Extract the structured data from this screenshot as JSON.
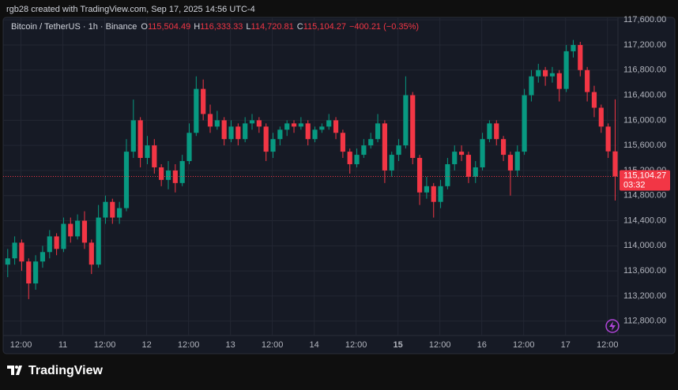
{
  "header": "rgb28 created with TradingView.com, Sep 17, 2025 14:56 UTC-4",
  "brand": "TradingView",
  "chart_data": {
    "type": "candlestick",
    "title": "Bitcoin / TetherUS · 1h · Binance",
    "ohlc": [
      {
        "key": "O",
        "value": "115,504.49"
      },
      {
        "key": "H",
        "value": "116,333.33"
      },
      {
        "key": "L",
        "value": "114,720.81"
      },
      {
        "key": "C",
        "value": "115,104.27"
      }
    ],
    "change": "−400.21 (−0.35%)",
    "last_price_label": "115,104.27",
    "countdown": "03:32",
    "up_color": "#089981",
    "down_color": "#f23645",
    "candles": [
      [
        113700,
        113950,
        113500,
        113800
      ],
      [
        113800,
        114150,
        113700,
        114050
      ],
      [
        114050,
        114100,
        113600,
        113750
      ],
      [
        113750,
        113800,
        113150,
        113400
      ],
      [
        113400,
        113850,
        113300,
        113750
      ],
      [
        113750,
        114000,
        113650,
        113900
      ],
      [
        113900,
        114250,
        113800,
        114150
      ],
      [
        114150,
        114200,
        113850,
        113950
      ],
      [
        113950,
        114450,
        113900,
        114350
      ],
      [
        114350,
        114450,
        114050,
        114150
      ],
      [
        114150,
        114500,
        114100,
        114400
      ],
      [
        114400,
        114550,
        113950,
        114050
      ],
      [
        114050,
        114100,
        113550,
        113700
      ],
      [
        113700,
        114650,
        113650,
        114450
      ],
      [
        114450,
        114800,
        114350,
        114700
      ],
      [
        114700,
        114750,
        114350,
        114450
      ],
      [
        114450,
        114700,
        114350,
        114600
      ],
      [
        114600,
        115700,
        114550,
        115500
      ],
      [
        115500,
        116330,
        115400,
        116000
      ],
      [
        116000,
        116050,
        115250,
        115400
      ],
      [
        115400,
        115750,
        115300,
        115600
      ],
      [
        115600,
        115700,
        115150,
        115250
      ],
      [
        115250,
        115300,
        114950,
        115050
      ],
      [
        115050,
        115350,
        114900,
        115200
      ],
      [
        115200,
        115300,
        114850,
        115000
      ],
      [
        115000,
        115450,
        114950,
        115350
      ],
      [
        115350,
        115950,
        115300,
        115800
      ],
      [
        115800,
        116700,
        115750,
        116500
      ],
      [
        116500,
        116650,
        116000,
        116100
      ],
      [
        116100,
        116250,
        115800,
        115900
      ],
      [
        115900,
        116150,
        115850,
        116000
      ],
      [
        116000,
        116050,
        115600,
        115700
      ],
      [
        115700,
        116000,
        115650,
        115900
      ],
      [
        115900,
        115950,
        115600,
        115700
      ],
      [
        115700,
        116050,
        115650,
        115950
      ],
      [
        115950,
        116100,
        115850,
        116000
      ],
      [
        116000,
        116050,
        115800,
        115900
      ],
      [
        115900,
        115950,
        115350,
        115500
      ],
      [
        115500,
        115800,
        115400,
        115700
      ],
      [
        115700,
        115900,
        115600,
        115850
      ],
      [
        115850,
        116000,
        115750,
        115950
      ],
      [
        115950,
        116000,
        115800,
        115900
      ],
      [
        115900,
        116050,
        115850,
        115950
      ],
      [
        115950,
        116000,
        115600,
        115700
      ],
      [
        115700,
        115900,
        115650,
        115850
      ],
      [
        115850,
        115950,
        115800,
        115900
      ],
      [
        115900,
        116100,
        115850,
        116000
      ],
      [
        116000,
        116050,
        115700,
        115800
      ],
      [
        115800,
        115850,
        115400,
        115500
      ],
      [
        115500,
        115550,
        115150,
        115300
      ],
      [
        115300,
        115550,
        115250,
        115450
      ],
      [
        115450,
        115700,
        115400,
        115600
      ],
      [
        115600,
        115800,
        115550,
        115700
      ],
      [
        115700,
        116100,
        115650,
        115950
      ],
      [
        115950,
        116000,
        115000,
        115200
      ],
      [
        115200,
        115500,
        115100,
        115450
      ],
      [
        115450,
        115700,
        115350,
        115600
      ],
      [
        115600,
        116700,
        115550,
        116400
      ],
      [
        116400,
        116450,
        115300,
        115400
      ],
      [
        115400,
        115450,
        114650,
        114850
      ],
      [
        114850,
        115100,
        114750,
        114950
      ],
      [
        114950,
        115000,
        114450,
        114700
      ],
      [
        114700,
        115050,
        114600,
        114950
      ],
      [
        114950,
        115400,
        114900,
        115300
      ],
      [
        115300,
        115600,
        115200,
        115500
      ],
      [
        115500,
        115600,
        115350,
        115450
      ],
      [
        115450,
        115500,
        115000,
        115100
      ],
      [
        115100,
        115350,
        115000,
        115250
      ],
      [
        115250,
        115800,
        115200,
        115700
      ],
      [
        115700,
        116000,
        115650,
        115950
      ],
      [
        115950,
        116000,
        115600,
        115700
      ],
      [
        115700,
        115750,
        115350,
        115450
      ],
      [
        115450,
        115500,
        114800,
        115200
      ],
      [
        115200,
        115600,
        115100,
        115500
      ],
      [
        115500,
        116500,
        115450,
        116400
      ],
      [
        116400,
        116800,
        116300,
        116700
      ],
      [
        116700,
        116900,
        116600,
        116800
      ],
      [
        116800,
        116850,
        116550,
        116700
      ],
      [
        116700,
        116850,
        116600,
        116750
      ],
      [
        116750,
        116800,
        116300,
        116500
      ],
      [
        116500,
        117200,
        116450,
        117100
      ],
      [
        117100,
        117280,
        117000,
        117200
      ],
      [
        117200,
        117250,
        116700,
        116800
      ],
      [
        116800,
        116850,
        116300,
        116450
      ],
      [
        116450,
        116550,
        116050,
        116200
      ],
      [
        116200,
        116250,
        115800,
        115900
      ],
      [
        115900,
        115950,
        115400,
        115504.49
      ],
      [
        115504.49,
        116333.33,
        114720.81,
        115104.27
      ]
    ],
    "xlim": [
      -0.2,
      87.4
    ],
    "xticks": [
      {
        "value": 1.9,
        "label": "12:00"
      },
      {
        "value": 7.9,
        "label": "11"
      },
      {
        "value": 13.9,
        "label": "12:00"
      },
      {
        "value": 19.9,
        "label": "12"
      },
      {
        "value": 25.9,
        "label": "12:00"
      },
      {
        "value": 31.9,
        "label": "13"
      },
      {
        "value": 37.9,
        "label": "12:00"
      },
      {
        "value": 43.9,
        "label": "14"
      },
      {
        "value": 49.9,
        "label": "12:00"
      },
      {
        "value": 55.9,
        "label": "15"
      },
      {
        "value": 61.9,
        "label": "12:00"
      },
      {
        "value": 67.9,
        "label": "16"
      },
      {
        "value": 73.9,
        "label": "12:00"
      },
      {
        "value": 79.9,
        "label": "17"
      },
      {
        "value": 85.9,
        "label": "12:00"
      }
    ],
    "ylim": [
      112570,
      117640
    ],
    "yticks": [
      {
        "value": 112800,
        "label": "112,800.00"
      },
      {
        "value": 113200,
        "label": "113,200.00"
      },
      {
        "value": 113600,
        "label": "113,600.00"
      },
      {
        "value": 114000,
        "label": "114,000.00"
      },
      {
        "value": 114400,
        "label": "114,400.00"
      },
      {
        "value": 114800,
        "label": "114,800.00"
      },
      {
        "value": 115200,
        "label": "115,200.00"
      },
      {
        "value": 115600,
        "label": "115,600.00"
      },
      {
        "value": 116000,
        "label": "116,000.00"
      },
      {
        "value": 116400,
        "label": "116,400.00"
      },
      {
        "value": 116800,
        "label": "116,800.00"
      },
      {
        "value": 117200,
        "label": "117,200.00"
      },
      {
        "value": 117600,
        "label": "117,600.00"
      }
    ],
    "grid": true
  }
}
